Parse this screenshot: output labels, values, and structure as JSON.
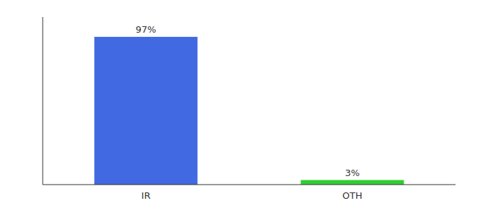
{
  "chart_data": {
    "type": "bar",
    "categories": [
      "IR",
      "OTH"
    ],
    "values": [
      97,
      3
    ],
    "colors": [
      "#4169e1",
      "#32cd32"
    ],
    "ylim": [
      0,
      110
    ],
    "yticks": [],
    "grid": false,
    "data_labels": true,
    "value_labels": [
      "97%",
      "3%"
    ],
    "tick_labels": "x"
  }
}
